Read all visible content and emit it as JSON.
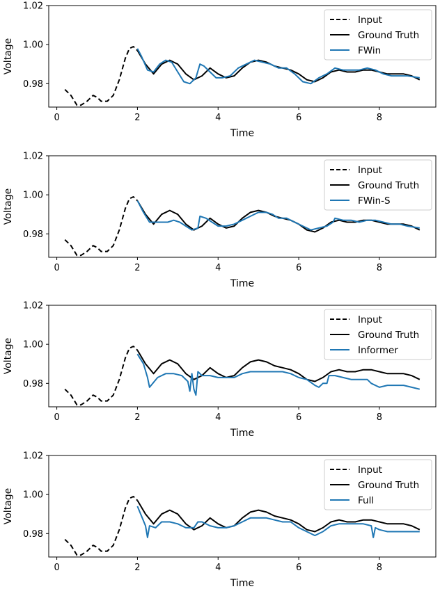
{
  "colors": {
    "input": "#000000",
    "truth": "#000000",
    "prediction": "#1f77b4",
    "axes": "#000000",
    "legend_border": "#cccccc"
  },
  "chart_data": [
    {
      "type": "line",
      "xlabel": "Time",
      "ylabel": "Voltage",
      "xlim": [
        -0.2,
        9.4
      ],
      "ylim": [
        0.968,
        1.02
      ],
      "xticks": [
        0,
        2,
        4,
        6,
        8
      ],
      "yticks": [
        0.98,
        1.0,
        1.02
      ],
      "xtick_labels": [
        "0",
        "2",
        "4",
        "6",
        "8"
      ],
      "ytick_labels": [
        "0.98",
        "1.00",
        "1.02"
      ],
      "legend": {
        "location": "top-right",
        "entries": [
          "Input",
          "Ground Truth",
          "FWin"
        ]
      },
      "series": [
        {
          "name": "Input",
          "style": "dashed",
          "x": [
            0.2,
            0.35,
            0.5,
            0.6,
            0.75,
            0.9,
            1.0,
            1.1,
            1.25,
            1.4,
            1.55,
            1.7,
            1.8,
            1.9,
            2.0
          ],
          "y": [
            0.977,
            0.974,
            0.969,
            0.969,
            0.971,
            0.974,
            0.973,
            0.971,
            0.971,
            0.974,
            0.982,
            0.993,
            0.998,
            0.999,
            0.997
          ]
        },
        {
          "name": "Ground Truth",
          "style": "solid",
          "x": [
            2.0,
            2.2,
            2.4,
            2.6,
            2.8,
            3.0,
            3.2,
            3.4,
            3.6,
            3.8,
            4.0,
            4.2,
            4.4,
            4.6,
            4.8,
            5.0,
            5.2,
            5.4,
            5.6,
            5.8,
            6.0,
            6.2,
            6.4,
            6.6,
            6.8,
            7.0,
            7.2,
            7.4,
            7.6,
            7.8,
            8.0,
            8.2,
            8.4,
            8.6,
            8.8,
            9.0
          ],
          "y": [
            0.997,
            0.99,
            0.985,
            0.99,
            0.992,
            0.99,
            0.985,
            0.982,
            0.984,
            0.988,
            0.985,
            0.983,
            0.984,
            0.988,
            0.991,
            0.992,
            0.991,
            0.989,
            0.988,
            0.987,
            0.985,
            0.982,
            0.981,
            0.983,
            0.986,
            0.987,
            0.986,
            0.986,
            0.987,
            0.987,
            0.986,
            0.985,
            0.985,
            0.985,
            0.984,
            0.982
          ]
        },
        {
          "name": "FWin",
          "style": "solid",
          "x": [
            2.0,
            2.1,
            2.25,
            2.4,
            2.55,
            2.7,
            2.85,
            3.0,
            3.15,
            3.3,
            3.45,
            3.55,
            3.65,
            3.8,
            3.95,
            4.1,
            4.3,
            4.5,
            4.7,
            4.9,
            5.1,
            5.3,
            5.5,
            5.7,
            5.9,
            6.1,
            6.3,
            6.5,
            6.7,
            6.9,
            7.1,
            7.3,
            7.5,
            7.7,
            7.9,
            8.1,
            8.3,
            8.5,
            8.7,
            9.0
          ],
          "y": [
            0.998,
            0.994,
            0.987,
            0.986,
            0.99,
            0.992,
            0.991,
            0.986,
            0.981,
            0.98,
            0.983,
            0.99,
            0.989,
            0.986,
            0.983,
            0.983,
            0.984,
            0.988,
            0.99,
            0.992,
            0.991,
            0.99,
            0.988,
            0.988,
            0.985,
            0.981,
            0.98,
            0.983,
            0.985,
            0.988,
            0.987,
            0.987,
            0.987,
            0.988,
            0.987,
            0.985,
            0.984,
            0.984,
            0.984,
            0.983
          ]
        }
      ]
    },
    {
      "type": "line",
      "xlabel": "Time",
      "ylabel": "Voltage",
      "xlim": [
        -0.2,
        9.4
      ],
      "ylim": [
        0.968,
        1.02
      ],
      "xticks": [
        0,
        2,
        4,
        6,
        8
      ],
      "yticks": [
        0.98,
        1.0,
        1.02
      ],
      "xtick_labels": [
        "0",
        "2",
        "4",
        "6",
        "8"
      ],
      "ytick_labels": [
        "0.98",
        "1.00",
        "1.02"
      ],
      "legend": {
        "location": "top-right",
        "entries": [
          "Input",
          "Ground Truth",
          "FWin-S"
        ]
      },
      "series": [
        {
          "name": "Input",
          "style": "dashed",
          "x": [
            0.2,
            0.35,
            0.5,
            0.6,
            0.75,
            0.9,
            1.0,
            1.1,
            1.25,
            1.4,
            1.55,
            1.7,
            1.8,
            1.9,
            2.0
          ],
          "y": [
            0.977,
            0.974,
            0.969,
            0.969,
            0.971,
            0.974,
            0.973,
            0.971,
            0.971,
            0.974,
            0.982,
            0.993,
            0.998,
            0.999,
            0.997
          ]
        },
        {
          "name": "Ground Truth",
          "style": "solid",
          "x": [
            2.0,
            2.2,
            2.4,
            2.6,
            2.8,
            3.0,
            3.2,
            3.4,
            3.6,
            3.8,
            4.0,
            4.2,
            4.4,
            4.6,
            4.8,
            5.0,
            5.2,
            5.4,
            5.6,
            5.8,
            6.0,
            6.2,
            6.4,
            6.6,
            6.8,
            7.0,
            7.2,
            7.4,
            7.6,
            7.8,
            8.0,
            8.2,
            8.4,
            8.6,
            8.8,
            9.0
          ],
          "y": [
            0.997,
            0.99,
            0.985,
            0.99,
            0.992,
            0.99,
            0.985,
            0.982,
            0.984,
            0.988,
            0.985,
            0.983,
            0.984,
            0.988,
            0.991,
            0.992,
            0.991,
            0.989,
            0.988,
            0.987,
            0.985,
            0.982,
            0.981,
            0.983,
            0.986,
            0.987,
            0.986,
            0.986,
            0.987,
            0.987,
            0.986,
            0.985,
            0.985,
            0.985,
            0.984,
            0.982
          ]
        },
        {
          "name": "FWin-S",
          "style": "solid",
          "x": [
            2.0,
            2.15,
            2.3,
            2.45,
            2.6,
            2.75,
            2.9,
            3.05,
            3.2,
            3.35,
            3.5,
            3.55,
            3.7,
            3.85,
            4.0,
            4.2,
            4.4,
            4.6,
            4.8,
            5.0,
            5.2,
            5.35,
            5.5,
            5.7,
            5.9,
            6.1,
            6.3,
            6.5,
            6.7,
            6.85,
            6.9,
            7.1,
            7.3,
            7.5,
            7.7,
            7.9,
            8.1,
            8.3,
            8.5,
            8.7,
            9.0
          ],
          "y": [
            0.997,
            0.991,
            0.986,
            0.986,
            0.986,
            0.986,
            0.987,
            0.986,
            0.984,
            0.982,
            0.983,
            0.989,
            0.988,
            0.986,
            0.984,
            0.984,
            0.985,
            0.987,
            0.989,
            0.991,
            0.991,
            0.99,
            0.988,
            0.988,
            0.986,
            0.984,
            0.982,
            0.983,
            0.984,
            0.986,
            0.988,
            0.987,
            0.987,
            0.986,
            0.987,
            0.987,
            0.986,
            0.985,
            0.985,
            0.984,
            0.983
          ]
        }
      ]
    },
    {
      "type": "line",
      "xlabel": "Time",
      "ylabel": "Voltage",
      "xlim": [
        -0.2,
        9.4
      ],
      "ylim": [
        0.968,
        1.02
      ],
      "xticks": [
        0,
        2,
        4,
        6,
        8
      ],
      "yticks": [
        0.98,
        1.0,
        1.02
      ],
      "xtick_labels": [
        "0",
        "2",
        "4",
        "6",
        "8"
      ],
      "ytick_labels": [
        "0.98",
        "1.00",
        "1.02"
      ],
      "legend": {
        "location": "top-right",
        "entries": [
          "Input",
          "Ground Truth",
          "Informer"
        ]
      },
      "series": [
        {
          "name": "Input",
          "style": "dashed",
          "x": [
            0.2,
            0.35,
            0.5,
            0.6,
            0.75,
            0.9,
            1.0,
            1.1,
            1.25,
            1.4,
            1.55,
            1.7,
            1.8,
            1.9,
            2.0
          ],
          "y": [
            0.977,
            0.974,
            0.969,
            0.969,
            0.971,
            0.974,
            0.973,
            0.971,
            0.971,
            0.974,
            0.982,
            0.993,
            0.998,
            0.999,
            0.997
          ]
        },
        {
          "name": "Ground Truth",
          "style": "solid",
          "x": [
            2.0,
            2.2,
            2.4,
            2.6,
            2.8,
            3.0,
            3.2,
            3.4,
            3.6,
            3.8,
            4.0,
            4.2,
            4.4,
            4.6,
            4.8,
            5.0,
            5.2,
            5.4,
            5.6,
            5.8,
            6.0,
            6.2,
            6.4,
            6.6,
            6.8,
            7.0,
            7.2,
            7.4,
            7.6,
            7.8,
            8.0,
            8.2,
            8.4,
            8.6,
            8.8,
            9.0
          ],
          "y": [
            0.997,
            0.99,
            0.985,
            0.99,
            0.992,
            0.99,
            0.985,
            0.982,
            0.984,
            0.988,
            0.985,
            0.983,
            0.984,
            0.988,
            0.991,
            0.992,
            0.991,
            0.989,
            0.988,
            0.987,
            0.985,
            0.982,
            0.981,
            0.983,
            0.986,
            0.987,
            0.986,
            0.986,
            0.987,
            0.987,
            0.986,
            0.985,
            0.985,
            0.985,
            0.984,
            0.982
          ]
        },
        {
          "name": "Informer",
          "style": "solid",
          "x": [
            2.0,
            2.15,
            2.25,
            2.3,
            2.5,
            2.7,
            2.9,
            3.1,
            3.25,
            3.3,
            3.35,
            3.4,
            3.45,
            3.5,
            3.6,
            3.8,
            4.0,
            4.2,
            4.4,
            4.6,
            4.8,
            5.0,
            5.2,
            5.4,
            5.6,
            5.8,
            6.0,
            6.2,
            6.4,
            6.5,
            6.6,
            6.7,
            6.75,
            6.9,
            7.1,
            7.3,
            7.5,
            7.7,
            7.8,
            8.0,
            8.2,
            8.4,
            8.6,
            8.8,
            9.0
          ],
          "y": [
            0.995,
            0.99,
            0.983,
            0.978,
            0.983,
            0.985,
            0.985,
            0.984,
            0.981,
            0.976,
            0.985,
            0.977,
            0.974,
            0.986,
            0.984,
            0.984,
            0.983,
            0.983,
            0.983,
            0.985,
            0.986,
            0.986,
            0.986,
            0.986,
            0.986,
            0.985,
            0.983,
            0.982,
            0.979,
            0.978,
            0.98,
            0.98,
            0.984,
            0.984,
            0.983,
            0.982,
            0.982,
            0.982,
            0.98,
            0.978,
            0.979,
            0.979,
            0.979,
            0.978,
            0.977
          ]
        }
      ]
    },
    {
      "type": "line",
      "xlabel": "Time",
      "ylabel": "Voltage",
      "xlim": [
        -0.2,
        9.4
      ],
      "ylim": [
        0.968,
        1.02
      ],
      "xticks": [
        0,
        2,
        4,
        6,
        8
      ],
      "yticks": [
        0.98,
        1.0,
        1.02
      ],
      "xtick_labels": [
        "0",
        "2",
        "4",
        "6",
        "8"
      ],
      "ytick_labels": [
        "0.98",
        "1.00",
        "1.02"
      ],
      "legend": {
        "location": "top-right",
        "entries": [
          "Input",
          "Ground Truth",
          "Full"
        ]
      },
      "series": [
        {
          "name": "Input",
          "style": "dashed",
          "x": [
            0.2,
            0.35,
            0.5,
            0.6,
            0.75,
            0.9,
            1.0,
            1.1,
            1.25,
            1.4,
            1.55,
            1.7,
            1.8,
            1.9,
            2.0
          ],
          "y": [
            0.977,
            0.974,
            0.969,
            0.969,
            0.971,
            0.974,
            0.973,
            0.971,
            0.971,
            0.974,
            0.982,
            0.993,
            0.998,
            0.999,
            0.997
          ]
        },
        {
          "name": "Ground Truth",
          "style": "solid",
          "x": [
            2.0,
            2.2,
            2.4,
            2.6,
            2.8,
            3.0,
            3.2,
            3.4,
            3.6,
            3.8,
            4.0,
            4.2,
            4.4,
            4.6,
            4.8,
            5.0,
            5.2,
            5.4,
            5.6,
            5.8,
            6.0,
            6.2,
            6.4,
            6.6,
            6.8,
            7.0,
            7.2,
            7.4,
            7.6,
            7.8,
            8.0,
            8.2,
            8.4,
            8.6,
            8.8,
            9.0
          ],
          "y": [
            0.997,
            0.99,
            0.985,
            0.99,
            0.992,
            0.99,
            0.985,
            0.982,
            0.984,
            0.988,
            0.985,
            0.983,
            0.984,
            0.988,
            0.991,
            0.992,
            0.991,
            0.989,
            0.988,
            0.987,
            0.985,
            0.982,
            0.981,
            0.983,
            0.986,
            0.987,
            0.986,
            0.986,
            0.987,
            0.987,
            0.986,
            0.985,
            0.985,
            0.985,
            0.984,
            0.982
          ]
        },
        {
          "name": "Full",
          "style": "solid",
          "x": [
            2.0,
            2.1,
            2.2,
            2.25,
            2.3,
            2.45,
            2.6,
            2.8,
            3.0,
            3.2,
            3.4,
            3.5,
            3.6,
            3.8,
            4.0,
            4.2,
            4.4,
            4.6,
            4.8,
            5.0,
            5.2,
            5.4,
            5.6,
            5.8,
            6.0,
            6.2,
            6.4,
            6.6,
            6.8,
            7.0,
            7.2,
            7.4,
            7.6,
            7.8,
            7.85,
            7.9,
            8.0,
            8.2,
            8.4,
            8.6,
            8.8,
            9.0
          ],
          "y": [
            0.994,
            0.989,
            0.984,
            0.978,
            0.984,
            0.983,
            0.986,
            0.986,
            0.985,
            0.983,
            0.983,
            0.986,
            0.986,
            0.984,
            0.983,
            0.983,
            0.984,
            0.986,
            0.988,
            0.988,
            0.988,
            0.987,
            0.986,
            0.986,
            0.983,
            0.981,
            0.979,
            0.981,
            0.984,
            0.985,
            0.985,
            0.985,
            0.985,
            0.984,
            0.978,
            0.983,
            0.982,
            0.981,
            0.981,
            0.981,
            0.981,
            0.981
          ]
        }
      ]
    }
  ]
}
